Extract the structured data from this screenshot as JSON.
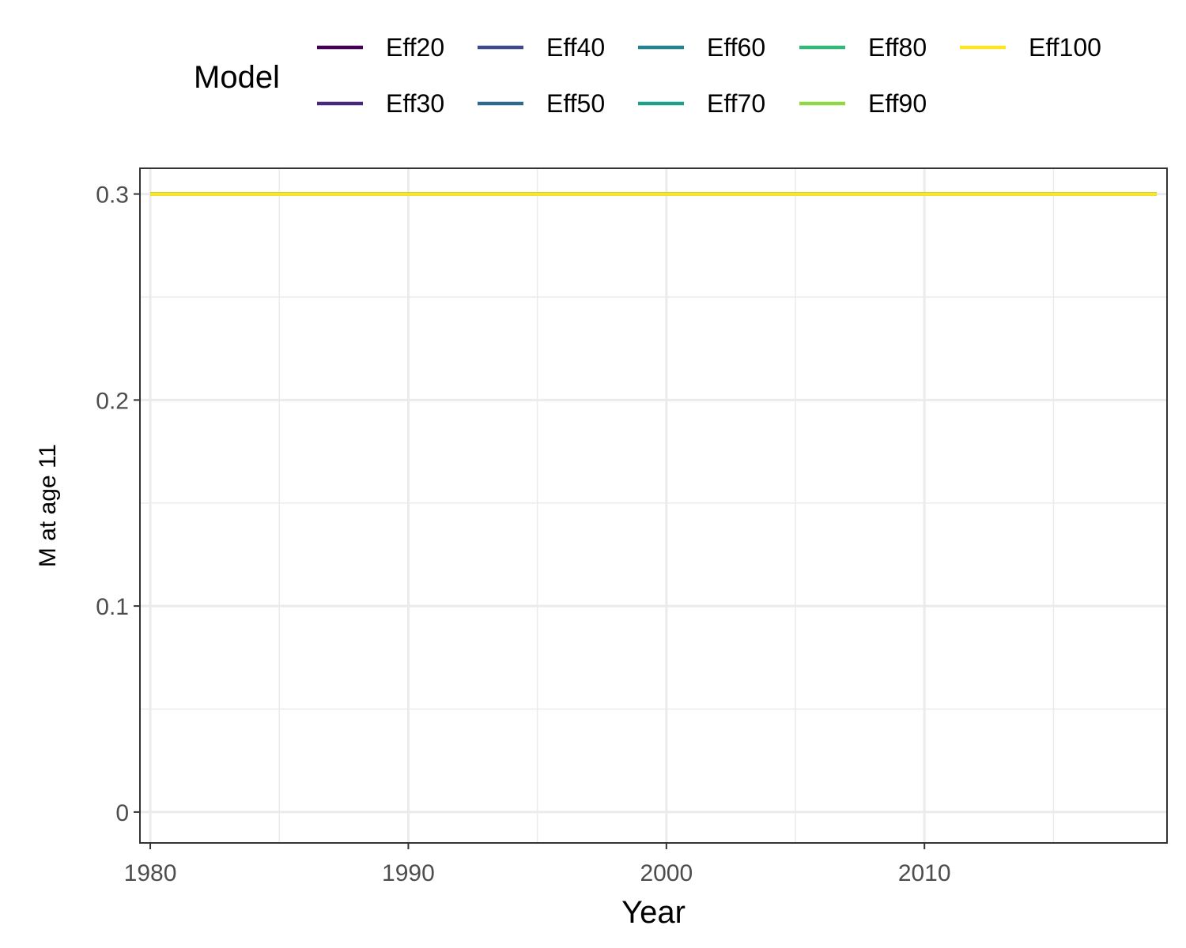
{
  "chart_data": {
    "type": "line",
    "title": "",
    "xlabel": "Year",
    "ylabel": "M at age 11",
    "xlim": [
      1979.6,
      2019.4
    ],
    "ylim": [
      -0.015,
      0.3125
    ],
    "x_ticks": [
      1980,
      1990,
      2000,
      2010
    ],
    "y_ticks": [
      0,
      0.1,
      0.2,
      0.3
    ],
    "y_tick_labels": [
      "0",
      "0.1",
      "0.2",
      "0.3"
    ],
    "grid": true,
    "legend": {
      "title": "Model",
      "position": "top",
      "columns": 5
    },
    "x": [
      1980,
      2019
    ],
    "series": [
      {
        "name": "Eff20",
        "color": "#440154",
        "values": [
          0.3,
          0.3
        ]
      },
      {
        "name": "Eff30",
        "color": "#482878",
        "values": [
          0.3,
          0.3
        ]
      },
      {
        "name": "Eff40",
        "color": "#3E4A89",
        "values": [
          0.3,
          0.3
        ]
      },
      {
        "name": "Eff50",
        "color": "#31688E",
        "values": [
          0.3,
          0.3
        ]
      },
      {
        "name": "Eff60",
        "color": "#26828E",
        "values": [
          0.3,
          0.3
        ]
      },
      {
        "name": "Eff70",
        "color": "#1F9E89",
        "values": [
          0.3,
          0.3
        ]
      },
      {
        "name": "Eff80",
        "color": "#35B779",
        "values": [
          0.3,
          0.3
        ]
      },
      {
        "name": "Eff90",
        "color": "#8FD744",
        "values": [
          0.3,
          0.3
        ]
      },
      {
        "name": "Eff100",
        "color": "#FDE725",
        "values": [
          0.3,
          0.3
        ]
      }
    ]
  }
}
